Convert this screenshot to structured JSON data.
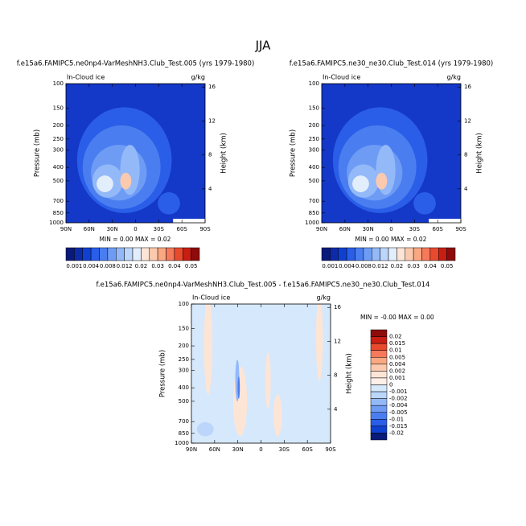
{
  "title": "JJA",
  "chart_data": [
    {
      "type": "contour",
      "title": "f.e15a6.FAMIPC5.ne0np4-VarMeshNH3.Club_Test.005 (yrs 1979-1980)",
      "left_label": "In-Cloud ice",
      "right_label": "g/kg",
      "ylabel": "Pressure (mb)",
      "y2label": "Height (km)",
      "stats": "MIN =  0.00  MAX =  0.02",
      "xlim": [
        90,
        -90
      ],
      "xticks": [
        {
          "value": 90,
          "label": "90N"
        },
        {
          "value": 60,
          "label": "60N"
        },
        {
          "value": 30,
          "label": "30N"
        },
        0,
        {
          "value": -30,
          "label": "30S"
        },
        {
          "value": -60,
          "label": "60S"
        },
        {
          "value": -90,
          "label": "90S"
        }
      ],
      "ylim": [
        1000,
        100
      ],
      "log_scale": true,
      "yticks": [
        100,
        150,
        200,
        250,
        300,
        400,
        500,
        700,
        850,
        1000
      ],
      "y2lim": [
        0,
        16.4
      ],
      "y2ticks": [
        4,
        8,
        12,
        16
      ],
      "colorbar": {
        "orientation": "horizontal",
        "levels": [
          0.001,
          0.004,
          0.008,
          0.012,
          0.02,
          0.03,
          0.04,
          0.05
        ],
        "colors": [
          "#0a1a7a",
          "#0d2ba8",
          "#1040d0",
          "#2a5ee8",
          "#4a7ef0",
          "#6e9cf5",
          "#93b9f8",
          "#bcd6fb",
          "#e3eefc",
          "#fde5d6",
          "#fbc9ae",
          "#f9a882",
          "#f5795a",
          "#e84a2e",
          "#c81e14",
          "#8e0b0b"
        ]
      }
    },
    {
      "type": "contour",
      "title": "f.e15a6.FAMIPC5.ne30_ne30.Club_Test.014 (yrs 1979-1980)",
      "left_label": "In-Cloud ice",
      "right_label": "g/kg",
      "ylabel": "Pressure (mb)",
      "y2label": "Height (km)",
      "stats": "MIN =  0.00  MAX =  0.02",
      "xlim": [
        90,
        -90
      ],
      "xticks": [
        {
          "value": 90,
          "label": "90N"
        },
        {
          "value": 60,
          "label": "60N"
        },
        {
          "value": 30,
          "label": "30N"
        },
        0,
        {
          "value": -30,
          "label": "30S"
        },
        {
          "value": -60,
          "label": "60S"
        },
        {
          "value": -90,
          "label": "90S"
        }
      ],
      "ylim": [
        1000,
        100
      ],
      "log_scale": true,
      "yticks": [
        100,
        150,
        200,
        250,
        300,
        400,
        500,
        700,
        850,
        1000
      ],
      "y2lim": [
        0,
        16.4
      ],
      "y2ticks": [
        4,
        8,
        12,
        16
      ],
      "colorbar": {
        "orientation": "horizontal",
        "levels": [
          0.001,
          0.004,
          0.008,
          0.012,
          0.02,
          0.03,
          0.04,
          0.05
        ],
        "colors": [
          "#0a1a7a",
          "#0d2ba8",
          "#1040d0",
          "#2a5ee8",
          "#4a7ef0",
          "#6e9cf5",
          "#93b9f8",
          "#bcd6fb",
          "#e3eefc",
          "#fde5d6",
          "#fbc9ae",
          "#f9a882",
          "#f5795a",
          "#e84a2e",
          "#c81e14",
          "#8e0b0b"
        ]
      }
    },
    {
      "type": "contour-diff",
      "title": "f.e15a6.FAMIPC5.ne0np4-VarMeshNH3.Club_Test.005 - f.e15a6.FAMIPC5.ne30_ne30.Club_Test.014",
      "left_label": "In-Cloud ice",
      "right_label": "g/kg",
      "ylabel": "Pressure (mb)",
      "y2label": "Height (km)",
      "stats": "MIN = -0.00  MAX =  0.00",
      "xlim": [
        90,
        -90
      ],
      "xticks": [
        {
          "value": 90,
          "label": "90N"
        },
        {
          "value": 60,
          "label": "60N"
        },
        {
          "value": 30,
          "label": "30N"
        },
        0,
        {
          "value": -30,
          "label": "30S"
        },
        {
          "value": -60,
          "label": "60S"
        },
        {
          "value": -90,
          "label": "90S"
        }
      ],
      "ylim": [
        1000,
        100
      ],
      "log_scale": true,
      "yticks": [
        100,
        150,
        200,
        250,
        300,
        400,
        500,
        700,
        850,
        1000
      ],
      "y2lim": [
        0,
        16.4
      ],
      "y2ticks": [
        4,
        8,
        12,
        16
      ],
      "colorbar": {
        "orientation": "vertical",
        "levels": [
          0.02,
          0.015,
          0.01,
          0.005,
          0.004,
          0.002,
          0.001,
          0,
          -0.001,
          -0.002,
          -0.004,
          -0.005,
          -0.01,
          -0.015,
          -0.02
        ],
        "colors": [
          "#8e0b0b",
          "#c81e14",
          "#e84a2e",
          "#f5795a",
          "#f9a882",
          "#fbc9ae",
          "#fde5d6",
          "#fdf0e8",
          "#d6e8fb",
          "#bcd6fb",
          "#93b9f8",
          "#6e9cf5",
          "#4a7ef0",
          "#2a5ee8",
          "#1040d0",
          "#0a1a7a"
        ]
      }
    }
  ]
}
